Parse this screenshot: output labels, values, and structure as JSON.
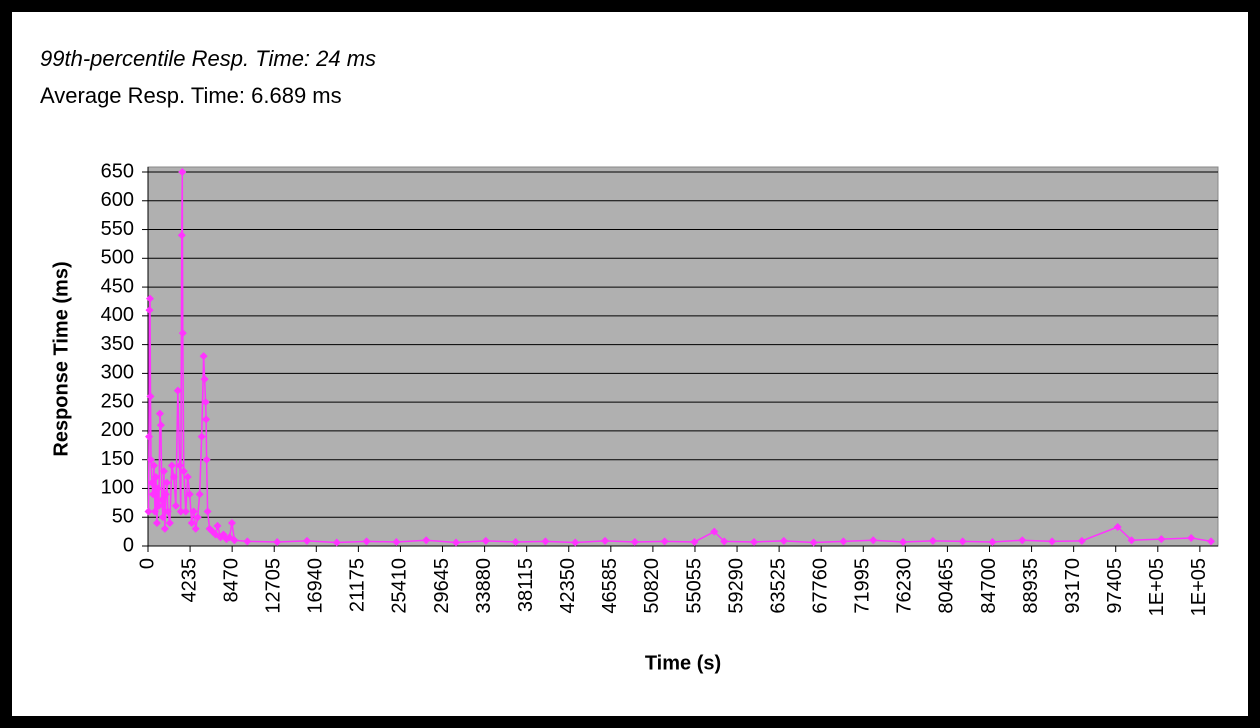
{
  "chart_data": {
    "type": "line",
    "title": "99th-percentile  Resp. Time: 24 ms",
    "subtitle": "Average Resp. Time: 6.689 ms",
    "y_label": "Response Time (ms)",
    "x_label": "Time (s)",
    "x": [
      50,
      100,
      150,
      200,
      250,
      300,
      400,
      500,
      600,
      700,
      800,
      900,
      1000,
      1100,
      1200,
      1300,
      1400,
      1500,
      1600,
      1700,
      1800,
      1900,
      2000,
      2200,
      2400,
      2600,
      2800,
      3000,
      3200,
      3300,
      3400,
      3450,
      3500,
      3600,
      3800,
      4000,
      4200,
      4400,
      4600,
      4800,
      5000,
      5200,
      5400,
      5600,
      5700,
      5800,
      5850,
      5900,
      6000,
      6200,
      6500,
      6800,
      7000,
      7300,
      7600,
      7900,
      8200,
      8450,
      8700,
      10000,
      13000,
      16000,
      19000,
      22000,
      25000,
      28000,
      31000,
      34000,
      37000,
      40000,
      43000,
      46000,
      49000,
      52000,
      55000,
      57000,
      58000,
      61000,
      64000,
      67000,
      70000,
      73000,
      76000,
      79000,
      82000,
      85000,
      88000,
      91000,
      94000,
      97600,
      99000,
      102000,
      105000,
      107000
    ],
    "series": [
      {
        "name": "Response Time",
        "color": "#ff33ff",
        "values": [
          60,
          190,
          410,
          430,
          260,
          150,
          110,
          90,
          140,
          60,
          120,
          40,
          100,
          70,
          230,
          210,
          80,
          50,
          130,
          30,
          90,
          110,
          60,
          40,
          140,
          120,
          70,
          270,
          140,
          60,
          540,
          650,
          370,
          130,
          60,
          120,
          90,
          40,
          60,
          30,
          50,
          90,
          190,
          330,
          290,
          250,
          220,
          150,
          60,
          30,
          25,
          20,
          35,
          15,
          20,
          12,
          15,
          40,
          10,
          8,
          7,
          9,
          6,
          8,
          7,
          10,
          6,
          9,
          7,
          8,
          6,
          9,
          7,
          8,
          7,
          25,
          8,
          7,
          9,
          6,
          8,
          10,
          7,
          9,
          8,
          7,
          10,
          8,
          9,
          33,
          10,
          12,
          14,
          8
        ]
      }
    ],
    "xlim": [
      0,
      107700
    ],
    "xticks": [
      0,
      4235,
      8470,
      12705,
      16940,
      21175,
      25410,
      29645,
      33880,
      38115,
      42350,
      46585,
      50820,
      55055,
      59290,
      63525,
      67760,
      71995,
      76230,
      80465,
      84700,
      88935,
      93170,
      97405,
      {
        "value": 101640,
        "label": "1E+05"
      },
      {
        "value": 105875,
        "label": "1E+05"
      }
    ],
    "ylim": [
      0,
      650
    ],
    "yticks": [
      0,
      50,
      100,
      150,
      200,
      250,
      300,
      350,
      400,
      450,
      500,
      550,
      600,
      650
    ],
    "grid": true
  }
}
